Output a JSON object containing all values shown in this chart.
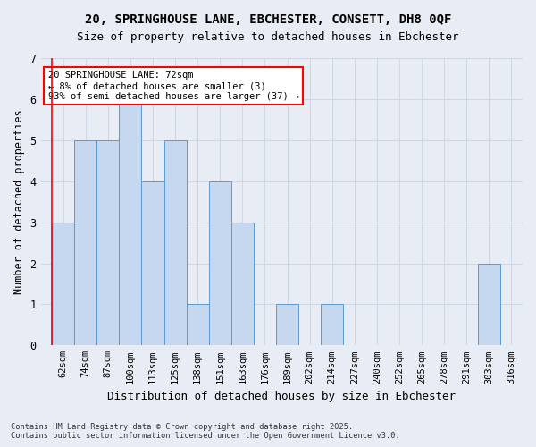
{
  "title_line1": "20, SPRINGHOUSE LANE, EBCHESTER, CONSETT, DH8 0QF",
  "title_line2": "Size of property relative to detached houses in Ebchester",
  "xlabel": "Distribution of detached houses by size in Ebchester",
  "ylabel": "Number of detached properties",
  "bins": [
    "62sqm",
    "74sqm",
    "87sqm",
    "100sqm",
    "113sqm",
    "125sqm",
    "138sqm",
    "151sqm",
    "163sqm",
    "176sqm",
    "189sqm",
    "202sqm",
    "214sqm",
    "227sqm",
    "240sqm",
    "252sqm",
    "265sqm",
    "278sqm",
    "291sqm",
    "303sqm",
    "316sqm"
  ],
  "counts": [
    3,
    5,
    5,
    6,
    4,
    5,
    1,
    4,
    3,
    0,
    1,
    0,
    1,
    0,
    0,
    0,
    0,
    0,
    0,
    2,
    0
  ],
  "bar_color": "#c5d8f0",
  "bar_edge_color": "#5b9bd5",
  "grid_color": "#d0d8e8",
  "background_color": "#e8edf5",
  "annotation_text": "20 SPRINGHOUSE LANE: 72sqm\n← 8% of detached houses are smaller (3)\n93% of semi-detached houses are larger (37) →",
  "annotation_box_color": "white",
  "annotation_box_edge": "red",
  "vline_color": "red",
  "ylim": [
    0,
    7
  ],
  "yticks": [
    0,
    1,
    2,
    3,
    4,
    5,
    6,
    7
  ],
  "footer_line1": "Contains HM Land Registry data © Crown copyright and database right 2025.",
  "footer_line2": "Contains public sector information licensed under the Open Government Licence v3.0."
}
